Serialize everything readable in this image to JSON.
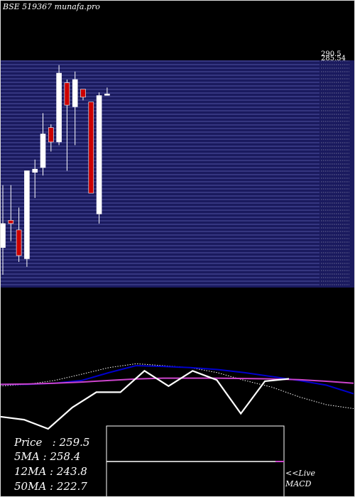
{
  "header": {
    "title": "BSE 519367 munafa.pro"
  },
  "colors": {
    "background": "#000000",
    "panel": "#1a1a5e",
    "gridline": "#9aa0ff",
    "bull_candle": "#ffffff",
    "bear_candle": "#cc0000",
    "ma_fast": "#0000cc",
    "ma_slow": "#cc44cc",
    "ma_dotted": "#ffffff",
    "oscillator": "#ffffff"
  },
  "stats": {
    "price_label": "Price",
    "price_value": "259.5",
    "ma5_label": "5MA",
    "ma5_value": "258.4",
    "ma12_label": "12MA",
    "ma12_value": "243.8",
    "ma50_label": "50MA",
    "ma50_value": "222.7",
    "live_label": "<<Live",
    "macd_label": "MACD"
  },
  "chart_data": {
    "type": "candlestick",
    "price_labels": [
      "290.5",
      "285.54"
    ],
    "candles": [
      {
        "open": 165,
        "high": 204,
        "low": 148,
        "close": 180
      },
      {
        "open": 182,
        "high": 204,
        "low": 169,
        "close": 180
      },
      {
        "open": 176,
        "high": 190,
        "low": 156,
        "close": 160
      },
      {
        "open": 158,
        "high": 213,
        "low": 153,
        "close": 213
      },
      {
        "open": 212,
        "high": 220,
        "low": 196,
        "close": 214
      },
      {
        "open": 215,
        "high": 249,
        "low": 210,
        "close": 236
      },
      {
        "open": 240,
        "high": 242,
        "low": 225,
        "close": 231
      },
      {
        "open": 231,
        "high": 279,
        "low": 229,
        "close": 274
      },
      {
        "open": 268,
        "high": 270,
        "low": 213,
        "close": 254
      },
      {
        "open": 253,
        "high": 275,
        "low": 229,
        "close": 270
      },
      {
        "open": 264,
        "high": 264,
        "low": 257,
        "close": 259
      },
      {
        "open": 256,
        "high": 256,
        "low": 200,
        "close": 199
      },
      {
        "open": 186,
        "high": 262,
        "low": 180,
        "close": 260
      },
      {
        "open": 261,
        "high": 265,
        "low": 260,
        "close": 261
      }
    ],
    "ma_fast_line": [
      0.52,
      0.52,
      0.55,
      0.62,
      0.82,
      1.0,
      0.98,
      0.95,
      0.9,
      0.82,
      0.72,
      0.62,
      0.5,
      0.28
    ],
    "ma_slow_line": [
      0.52,
      0.53,
      0.55,
      0.58,
      0.62,
      0.66,
      0.68,
      0.68,
      0.68,
      0.67,
      0.66,
      0.64,
      0.6,
      0.55
    ],
    "ma_dotted_line": [
      0.48,
      0.52,
      0.62,
      0.78,
      0.95,
      1.05,
      1.0,
      0.95,
      0.82,
      0.62,
      0.45,
      0.2,
      0.0,
      -0.1
    ],
    "oscillator_line": [
      0.2,
      0.15,
      0.0,
      0.35,
      0.6,
      0.6,
      0.95,
      0.7,
      0.95,
      0.8,
      0.25,
      0.78,
      0.82
    ],
    "macd_line": [
      0.5,
      0.5
    ]
  }
}
